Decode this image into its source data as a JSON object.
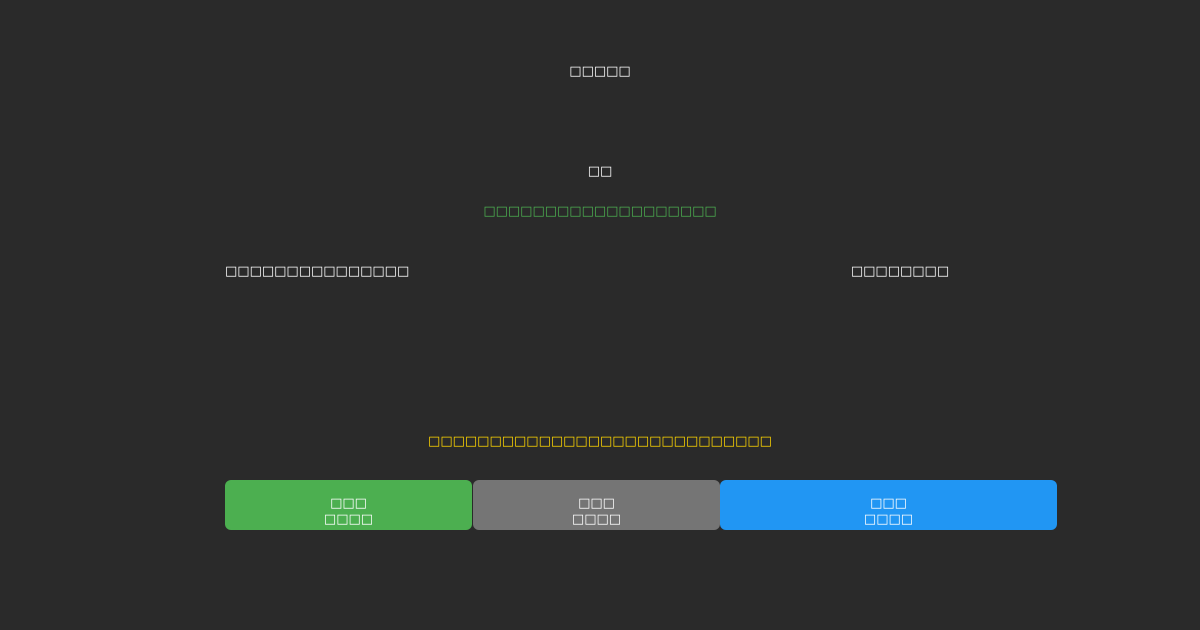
{
  "title": "□□□□□",
  "section_label": "□□",
  "status_text": "□□□□□□□□□□□□□□□□□□□",
  "left_label": "□□□□□□□□□□□□□□□",
  "right_label": "□□□□□□□□",
  "notice_text": "□□□□□□□□□□□□□□□□□□□□□□□□□□□□",
  "buttons": [
    {
      "line1": "□□□",
      "line2": "□□□□",
      "color": "#4caf50"
    },
    {
      "line1": "□□□",
      "line2": "□□□□",
      "color": "#757575"
    },
    {
      "line1": "□□□",
      "line2": "□□□□",
      "color": "#2196f3"
    }
  ],
  "colors": {
    "background": "#2a2a2a",
    "status": "#4caf50",
    "notice": "#ffd600"
  }
}
